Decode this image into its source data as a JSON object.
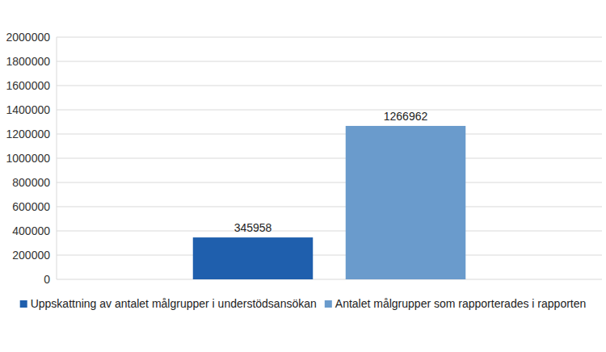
{
  "chart_data": {
    "type": "bar",
    "categories": [
      null
    ],
    "series": [
      {
        "name": "Uppskattning av antalet målgrupper i understödsansökan",
        "color": "#1f5fad",
        "values": [
          345958
        ]
      },
      {
        "name": "Antalet målgrupper som rapporterades i rapporten",
        "color": "#6a9bcc",
        "values": [
          1266962
        ]
      }
    ],
    "ylim": [
      0,
      2000000
    ],
    "yticks": [
      0,
      200000,
      400000,
      600000,
      800000,
      1000000,
      1200000,
      1400000,
      1600000,
      1800000,
      2000000
    ],
    "grid": true,
    "data_labels": true,
    "legend": "bottom"
  }
}
